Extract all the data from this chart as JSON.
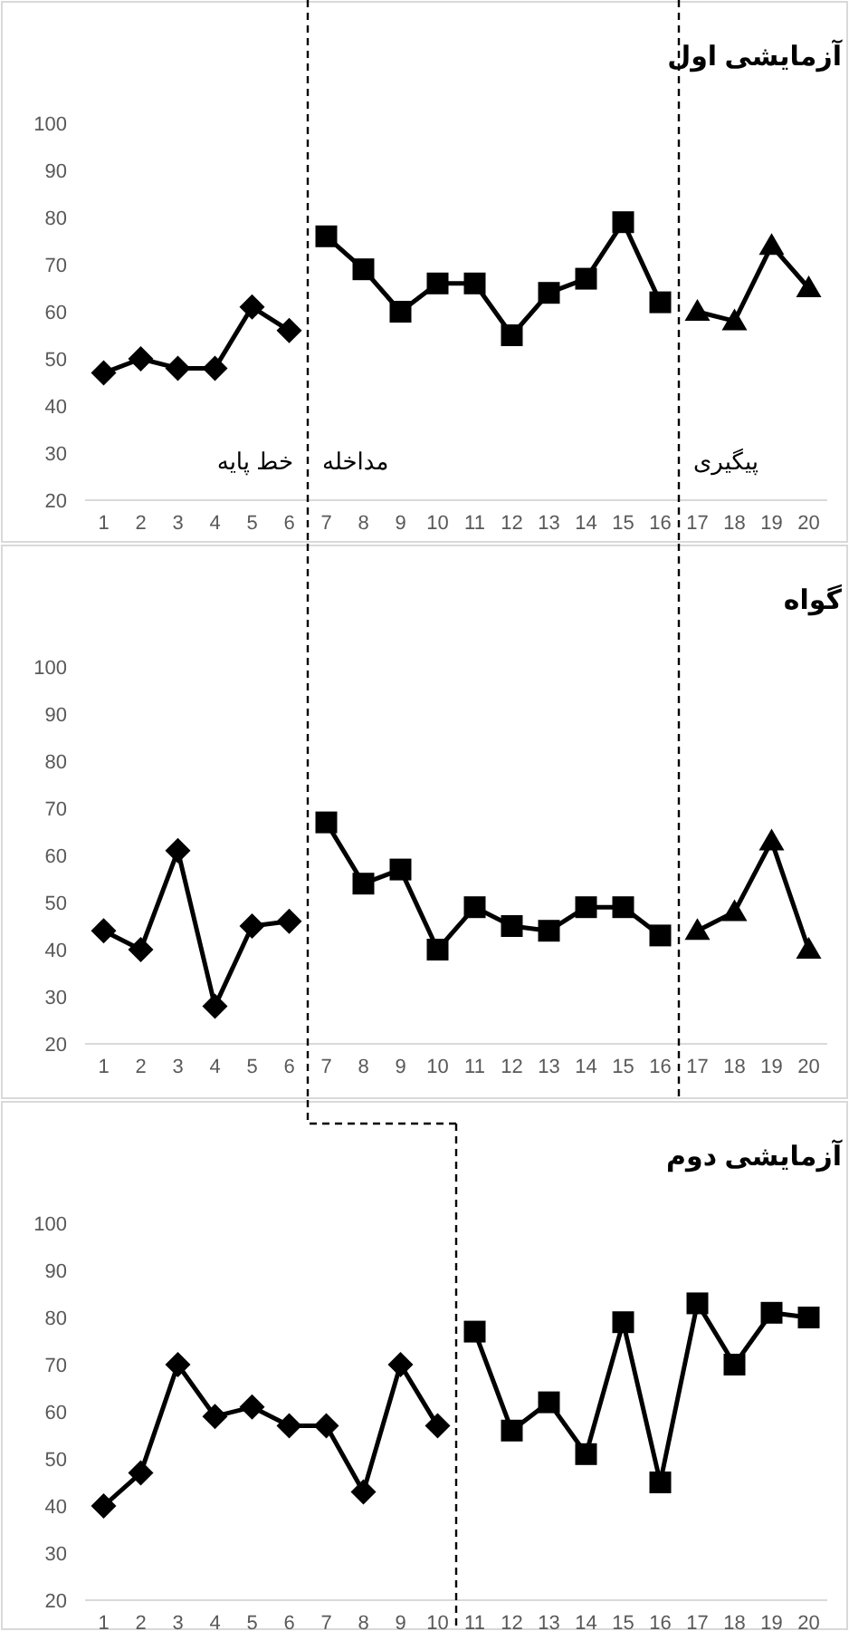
{
  "chart_data": [
    {
      "type": "line",
      "title": "آزمایشی اول",
      "xlim": [
        0.5,
        20.5
      ],
      "xticks": [
        1,
        2,
        3,
        4,
        5,
        6,
        7,
        8,
        9,
        10,
        11,
        12,
        13,
        14,
        15,
        16,
        17,
        18,
        19,
        20
      ],
      "ylim": [
        20,
        100
      ],
      "yticks": [
        20,
        30,
        40,
        50,
        60,
        70,
        80,
        90,
        100
      ],
      "grid": false,
      "series": [
        {
          "color": "#000000",
          "marker": "diamond",
          "x": [
            1,
            2,
            3,
            4,
            5,
            6
          ],
          "values": [
            47,
            50,
            48,
            48,
            61,
            56
          ]
        },
        {
          "color": "#000000",
          "marker": "square",
          "x": [
            7,
            8,
            9,
            10,
            11,
            12,
            13,
            14,
            15,
            16
          ],
          "values": [
            76,
            69,
            60,
            66,
            66,
            55,
            64,
            67,
            79,
            62
          ]
        },
        {
          "color": "#000000",
          "marker": "triangle",
          "x": [
            17,
            18,
            19,
            20
          ],
          "values": [
            60,
            58,
            74,
            65
          ]
        }
      ],
      "ref_lines": [
        {
          "axis": "x",
          "value": 6.5,
          "color": "#000000",
          "line_style": "dashed"
        },
        {
          "axis": "x",
          "value": 16.5,
          "color": "#000000",
          "line_style": "dashed"
        }
      ],
      "annotations": [
        "خط پایه",
        "مداخله",
        "پیگیری"
      ]
    },
    {
      "type": "line",
      "title": "گواه",
      "xlim": [
        0.5,
        20.5
      ],
      "xticks": [
        1,
        2,
        3,
        4,
        5,
        6,
        7,
        8,
        9,
        10,
        11,
        12,
        13,
        14,
        15,
        16,
        17,
        18,
        19,
        20
      ],
      "ylim": [
        20,
        100
      ],
      "yticks": [
        20,
        30,
        40,
        50,
        60,
        70,
        80,
        90,
        100
      ],
      "grid": false,
      "series": [
        {
          "color": "#000000",
          "marker": "diamond",
          "x": [
            1,
            2,
            3,
            4,
            5,
            6
          ],
          "values": [
            44,
            40,
            61,
            28,
            45,
            46
          ]
        },
        {
          "color": "#000000",
          "marker": "square",
          "x": [
            7,
            8,
            9,
            10,
            11,
            12,
            13,
            14,
            15,
            16
          ],
          "values": [
            67,
            54,
            57,
            40,
            49,
            45,
            44,
            49,
            49,
            43
          ]
        },
        {
          "color": "#000000",
          "marker": "triangle",
          "x": [
            17,
            18,
            19,
            20
          ],
          "values": [
            44,
            48,
            63,
            40
          ]
        }
      ],
      "ref_lines": [
        {
          "axis": "x",
          "value": 6.5,
          "color": "#000000",
          "line_style": "dashed"
        },
        {
          "axis": "x",
          "value": 16.5,
          "color": "#000000",
          "line_style": "dashed"
        }
      ]
    },
    {
      "type": "line",
      "title": "آزمایشی دوم",
      "xlim": [
        0.5,
        20.5
      ],
      "xticks": [
        1,
        2,
        3,
        4,
        5,
        6,
        7,
        8,
        9,
        10,
        11,
        12,
        13,
        14,
        15,
        16,
        17,
        18,
        19,
        20
      ],
      "ylim": [
        20,
        100
      ],
      "yticks": [
        20,
        30,
        40,
        50,
        60,
        70,
        80,
        90,
        100
      ],
      "grid": false,
      "series": [
        {
          "color": "#000000",
          "marker": "diamond",
          "x": [
            1,
            2,
            3,
            4,
            5,
            6,
            7,
            8,
            9,
            10
          ],
          "values": [
            40,
            47,
            70,
            59,
            61,
            57,
            57,
            43,
            70,
            57
          ]
        },
        {
          "color": "#000000",
          "marker": "square",
          "x": [
            11,
            12,
            13,
            14,
            15,
            16,
            17,
            18,
            19,
            20
          ],
          "values": [
            77,
            56,
            62,
            51,
            79,
            45,
            83,
            70,
            81,
            80
          ]
        }
      ],
      "ref_lines": [
        {
          "axis": "x",
          "value": 10.5,
          "color": "#000000",
          "line_style": "dashed"
        }
      ]
    }
  ]
}
